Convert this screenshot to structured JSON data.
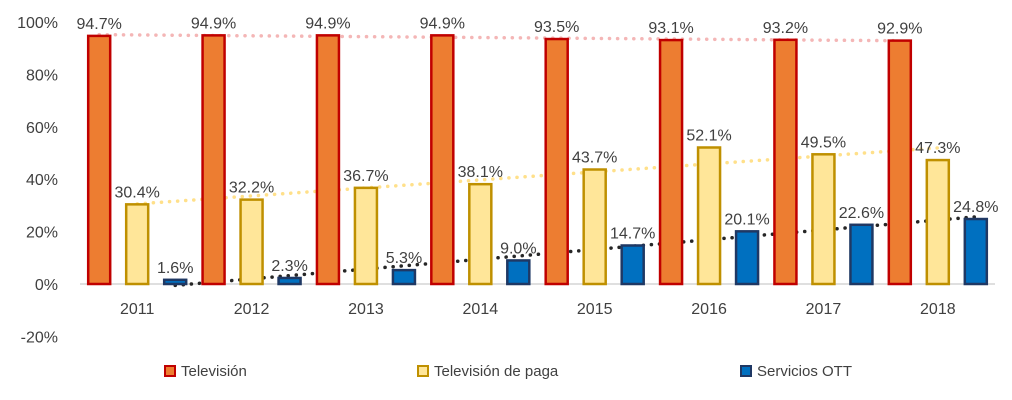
{
  "chart_data": {
    "type": "bar",
    "title": "",
    "xlabel": "",
    "ylabel": "",
    "categories": [
      "2011",
      "2012",
      "2013",
      "2014",
      "2015",
      "2016",
      "2017",
      "2018"
    ],
    "ylim": [
      -20,
      100
    ],
    "y_ticks": [
      "-20%",
      "0%",
      "20%",
      "40%",
      "60%",
      "80%",
      "100%"
    ],
    "y_tick_values": [
      -20,
      0,
      20,
      40,
      60,
      80,
      100
    ],
    "grid": false,
    "legend_position": "bottom",
    "trendlines": true,
    "series": [
      {
        "name": "Televisión",
        "values": [
          94.7,
          94.9,
          94.9,
          94.9,
          93.5,
          93.1,
          93.2,
          92.9
        ],
        "labels": [
          "94.7%",
          "94.9%",
          "94.9%",
          "94.9%",
          "93.5%",
          "93.1%",
          "93.2%",
          "92.9%"
        ],
        "fill": "#ED7D31",
        "stroke": "#C00000",
        "trend_color": "#F4B6B6"
      },
      {
        "name": "Televisión de paga",
        "values": [
          30.4,
          32.2,
          36.7,
          38.1,
          43.7,
          52.1,
          49.5,
          47.3
        ],
        "labels": [
          "30.4%",
          "32.2%",
          "36.7%",
          "38.1%",
          "43.7%",
          "52.1%",
          "49.5%",
          "47.3%"
        ],
        "fill": "#FFE699",
        "stroke": "#BF9000",
        "trend_color": "#FFE08A"
      },
      {
        "name": "Servicios OTT",
        "values": [
          1.6,
          2.3,
          5.3,
          9.0,
          14.7,
          20.1,
          22.6,
          24.8
        ],
        "labels": [
          "1.6%",
          "2.3%",
          "5.3%",
          "9.0%",
          "14.7%",
          "20.1%",
          "22.6%",
          "24.8%"
        ],
        "fill": "#0070C0",
        "stroke": "#1F3864",
        "trend_color": "#262626"
      }
    ]
  }
}
